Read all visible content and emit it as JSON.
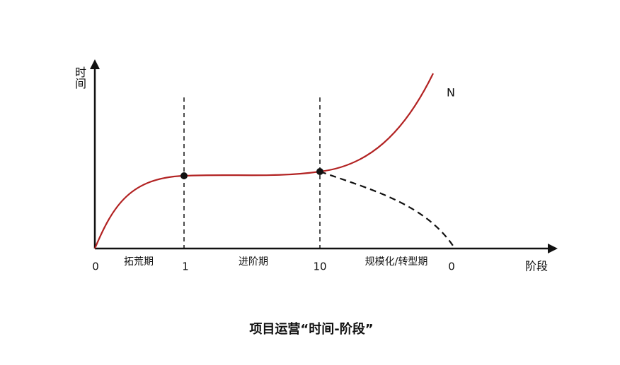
{
  "axes": {
    "y_label": "时间",
    "x_label": "阶段"
  },
  "x_ticks": [
    "0",
    "1",
    "10",
    "0"
  ],
  "phases": [
    "拓荒期",
    "进阶期",
    "规模化/转型期"
  ],
  "curve_label": "N",
  "caption": "项目运营“时间-阶段”"
}
